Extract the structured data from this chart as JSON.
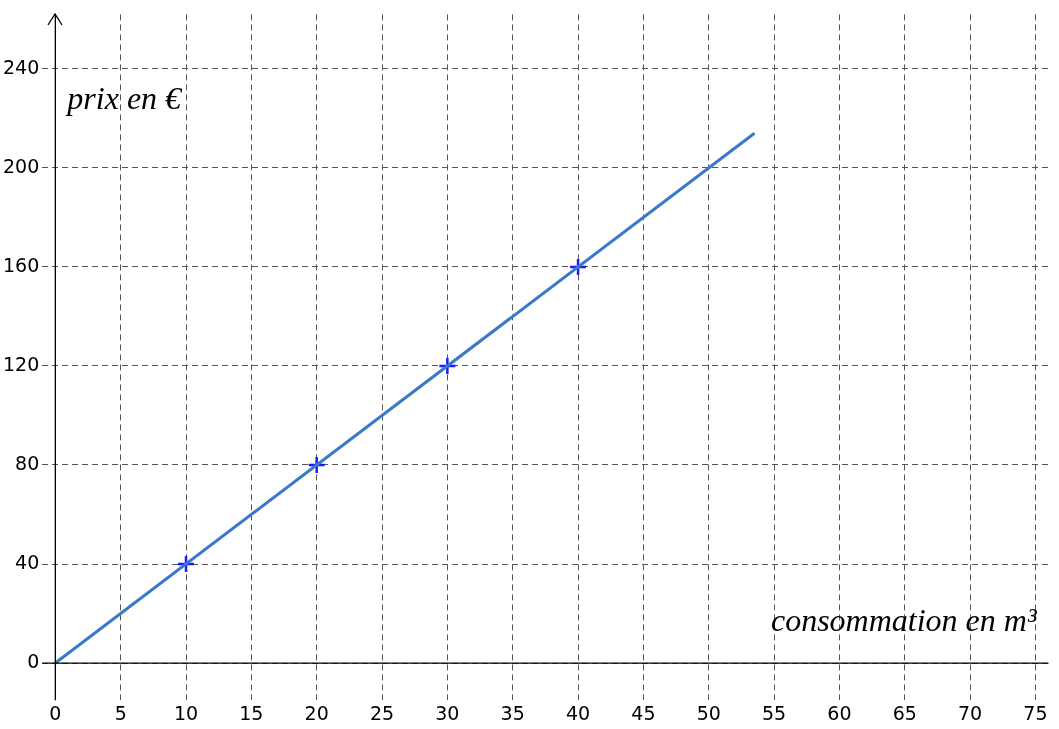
{
  "chart_data": {
    "type": "line",
    "xlabel": "consommation en m³",
    "ylabel": "prix en €",
    "xlim": [
      -1,
      76
    ],
    "ylim": [
      -15,
      262
    ],
    "xticks": [
      0,
      5,
      10,
      15,
      20,
      25,
      30,
      35,
      40,
      45,
      50,
      55,
      60,
      65,
      70,
      75
    ],
    "yticks": [
      0,
      40,
      80,
      120,
      160,
      200,
      240
    ],
    "grid": true,
    "legend": false,
    "line_style": "solid",
    "series": [
      {
        "x": [
          0,
          53.5
        ],
        "values": [
          0,
          214
        ],
        "color": "#3a78c8",
        "marker": "none"
      },
      {
        "type": "scatter",
        "x": [
          10,
          20,
          30,
          40
        ],
        "values": [
          40,
          80,
          120,
          160
        ],
        "color": "#1a1aff",
        "marker": "cross"
      }
    ]
  }
}
